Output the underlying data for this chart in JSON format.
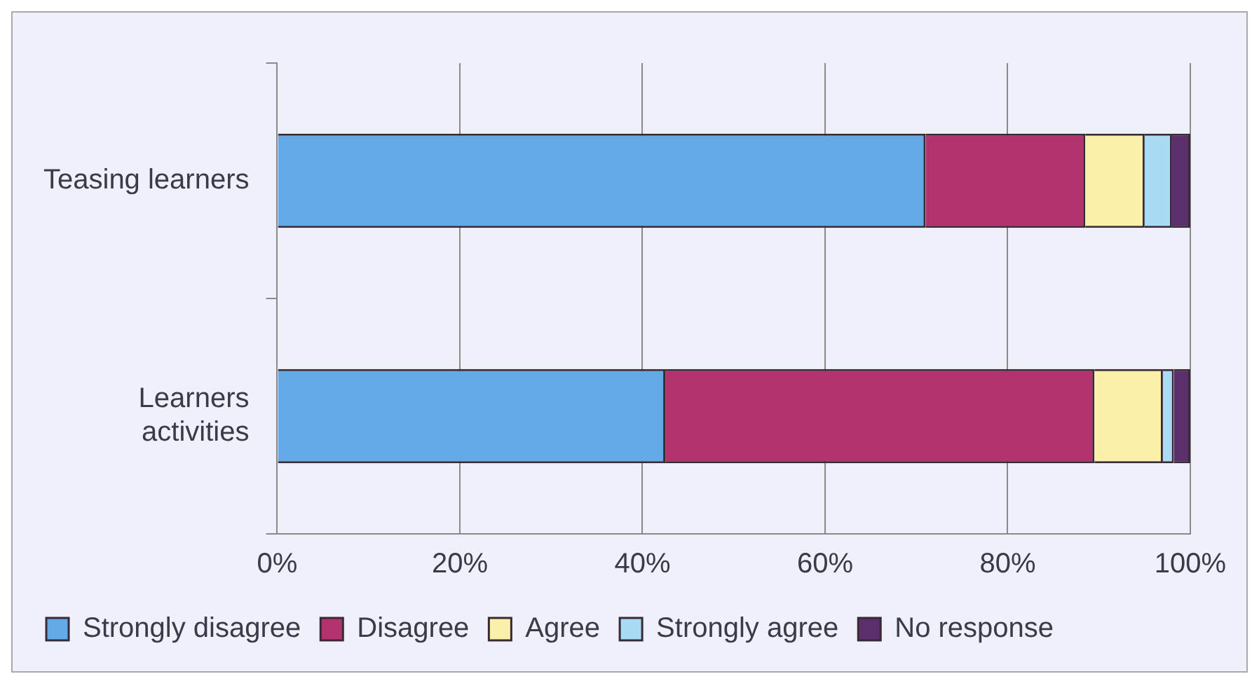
{
  "chart_data": {
    "type": "bar",
    "orientation": "horizontal",
    "stacked": true,
    "categories": [
      "Teasing learners",
      "Learners activities"
    ],
    "series": [
      {
        "name": "Strongly disagree",
        "color": "#62a9e6",
        "values": [
          71,
          42.5
        ]
      },
      {
        "name": "Disagree",
        "color": "#b3336e",
        "values": [
          17.5,
          47
        ]
      },
      {
        "name": "Agree",
        "color": "#fbf0a9",
        "values": [
          6.5,
          7.5
        ]
      },
      {
        "name": "Strongly agree",
        "color": "#a9dcf4",
        "values": [
          3,
          1.2
        ]
      },
      {
        "name": "No response",
        "color": "#5b2f6b",
        "values": [
          2,
          1.8
        ]
      }
    ],
    "xlim": [
      0,
      100
    ],
    "xticks": [
      {
        "value": 0,
        "label": "0%"
      },
      {
        "value": 20,
        "label": "20%"
      },
      {
        "value": 40,
        "label": "40%"
      },
      {
        "value": 60,
        "label": "60%"
      },
      {
        "value": 80,
        "label": "80%"
      },
      {
        "value": 100,
        "label": "100%"
      }
    ],
    "grid": "x",
    "legend": "bottom"
  }
}
